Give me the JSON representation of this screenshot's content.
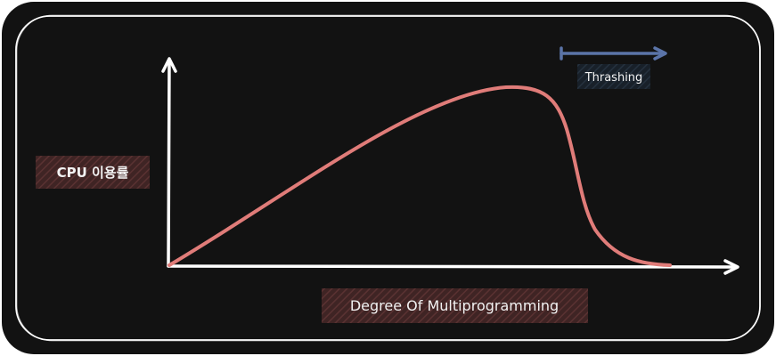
{
  "diagram": {
    "y_axis_label": "CPU 이용률",
    "x_axis_label": "Degree Of Multiprogramming",
    "region_label": "Thrashing"
  },
  "colors": {
    "background": "#121212",
    "curve": "#e07c79",
    "axes": "#ffffff",
    "thrashing_arrow": "#5b74a8",
    "label_bg": "#4a2a2a",
    "thrashing_label_bg": "#1d2630"
  }
}
